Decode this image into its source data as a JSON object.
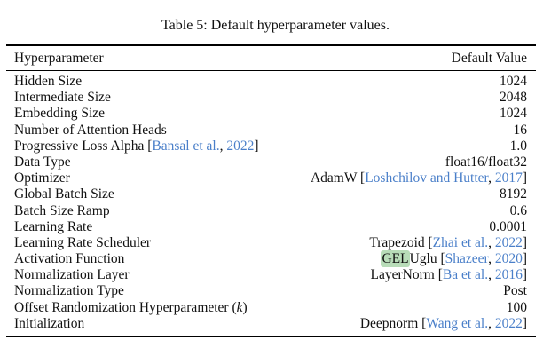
{
  "caption": "Table 5: Default hyperparameter values.",
  "header": {
    "col_param": "Hyperparameter",
    "col_value": "Default Value"
  },
  "rows": [
    {
      "name": "Hidden Size",
      "value": "1024"
    },
    {
      "name": "Intermediate Size",
      "value": "2048"
    },
    {
      "name": "Embedding Size",
      "value": "1024"
    },
    {
      "name": "Number of Attention Heads",
      "value": "16"
    },
    {
      "name": "Progressive Loss Alpha [",
      "name_cite": "Bansal et al.",
      "name_sep": ", ",
      "name_year": "2022",
      "name_close": "]",
      "value": "1.0"
    },
    {
      "name": "Data Type",
      "value": "float16/float32"
    },
    {
      "name": "Optimizer",
      "value": "AdamW [",
      "value_cite": "Loshchilov and Hutter",
      "value_sep": ", ",
      "value_year": "2017",
      "value_close": "]"
    },
    {
      "name": "Global Batch Size",
      "value": "8192"
    },
    {
      "name": "Batch Size Ramp",
      "value": "0.6"
    },
    {
      "name": "Learning Rate",
      "value": "0.0001"
    },
    {
      "name": "Learning Rate Scheduler",
      "value": "Trapezoid [",
      "value_cite": "Zhai et al.",
      "value_sep": ", ",
      "value_year": "2022",
      "value_close": "]"
    },
    {
      "name": "Activation Function",
      "value_hl": "GEL",
      "value": "Uglu [",
      "value_cite": "Shazeer",
      "value_sep": ", ",
      "value_year": "2020",
      "value_close": "]"
    },
    {
      "name": "Normalization Layer",
      "value": "LayerNorm [",
      "value_cite": "Ba et al.",
      "value_sep": ", ",
      "value_year": "2016",
      "value_close": "]"
    },
    {
      "name": "Normalization Type",
      "value": "Post"
    },
    {
      "name": "Offset Randomization Hyperparameter (",
      "name_italic": "k",
      "name_close": ")",
      "value": "100"
    },
    {
      "name": "Initialization",
      "value": "Deepnorm [",
      "value_cite": "Wang et al.",
      "value_sep": ", ",
      "value_year": "2022",
      "value_close": "]"
    }
  ],
  "colors": {
    "citation": "#4a7fc9",
    "highlight": "#b8dcb8"
  }
}
